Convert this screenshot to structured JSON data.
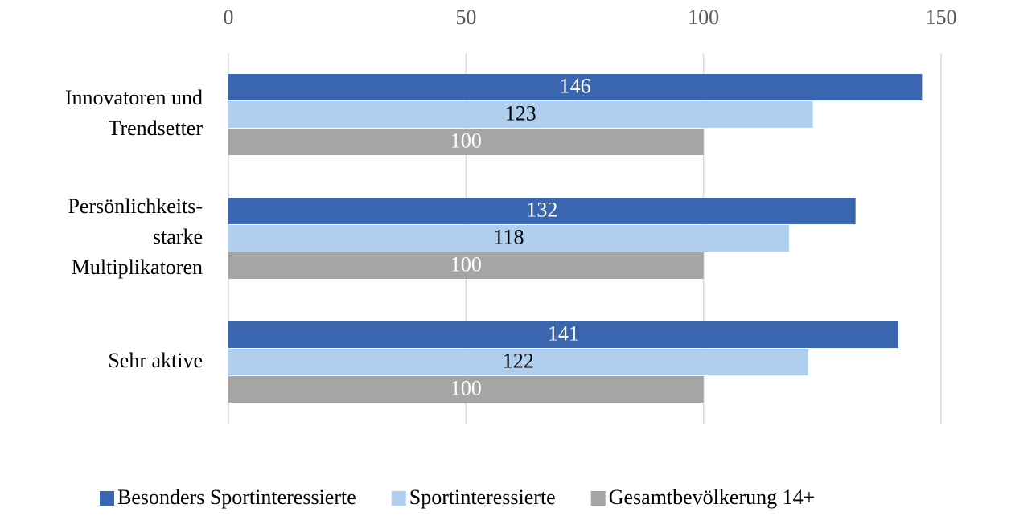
{
  "chart_data": {
    "type": "hbar",
    "categories": [
      [
        "Innovatoren und",
        "Trendsetter"
      ],
      [
        "Persönlichkeits-",
        "starke",
        "Multiplikatoren"
      ],
      [
        "Sehr aktive"
      ]
    ],
    "series": [
      {
        "name": "Besonders Sportinteressierte",
        "color": "#3a66b0",
        "values": [
          146,
          132,
          141
        ]
      },
      {
        "name": "Sportinteressierte",
        "color": "#b0cfee",
        "values": [
          123,
          118,
          122
        ]
      },
      {
        "name": "Gesamtbevölkerung 14+",
        "color": "#a5a5a5",
        "values": [
          100,
          100,
          100
        ]
      }
    ],
    "xlim": [
      0,
      150
    ],
    "xticks": [
      0,
      50,
      100,
      150
    ],
    "grid": true,
    "legend": "bottom"
  }
}
